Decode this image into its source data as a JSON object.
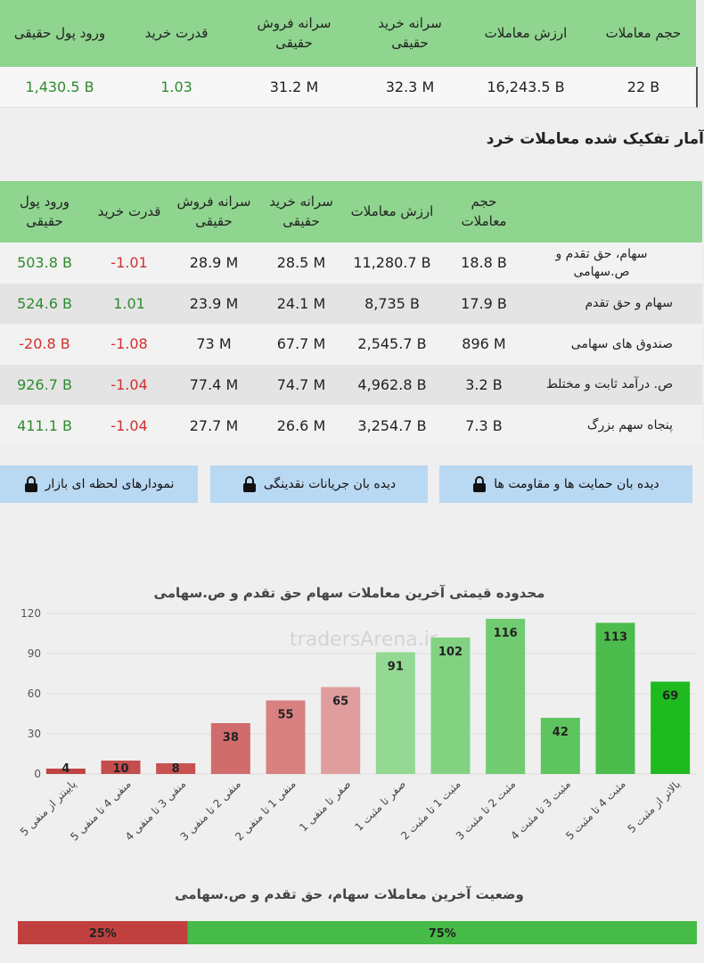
{
  "summary_table": {
    "headers": [
      "حجم معاملات",
      "ارزش معاملات",
      "سرانه خرید حقیقی",
      "سرانه فروش حقیقی",
      "قدرت خرید",
      "ورود پول حقیقی"
    ],
    "values": [
      "22 B",
      "16,243.5 B",
      "32.3 M",
      "31.2 M",
      "1.03",
      "1,430.5 B"
    ]
  },
  "section_title": "آمار تفکیک شده معاملات خرد",
  "breakdown_table": {
    "headers": [
      "حجم معاملات",
      "ارزش معاملات",
      "سرانه خرید حقیقی",
      "سرانه فروش حقیقی",
      "قدرت خرید",
      "ورود پول حقیقی"
    ],
    "rows": [
      {
        "label": "سهام، حق تقدم و ص.سهامی",
        "values": [
          "18.8 B",
          "11,280.7 B",
          "28.5 M",
          "28.9 M",
          "-1.01",
          "503.8 B"
        ]
      },
      {
        "label": "سهام و حق تقدم",
        "values": [
          "17.9 B",
          "8,735 B",
          "24.1 M",
          "23.9 M",
          "1.01",
          "524.6 B"
        ]
      },
      {
        "label": "صندوق های سهامی",
        "values": [
          "896 M",
          "2,545.7 B",
          "67.7 M",
          "73 M",
          "-1.08",
          "-20.8 B"
        ]
      },
      {
        "label": "ص. درآمد ثابت و مختلط",
        "values": [
          "3.2 B",
          "4,962.8 B",
          "74.7 M",
          "77.4 M",
          "-1.04",
          "926.7 B"
        ]
      },
      {
        "label": "پنجاه سهم بزرگ",
        "values": [
          "7.3 B",
          "3,254.7 B",
          "26.6 M",
          "27.7 M",
          "-1.04",
          "411.1 B"
        ]
      }
    ]
  },
  "buttons": [
    "دیده بان حمایت ها و مقاومت ها",
    "دیده بان جریانات نقدینگی",
    "نمودارهای لحظه ای بازار"
  ],
  "watermark": "tradersArena.ir",
  "chart_data": [
    {
      "type": "bar",
      "title": "محدوده قیمتی آخرین معاملات سهام حق تقدم و ص.سهامی",
      "categories": [
        "پایینتر از منفی 5",
        "منفی 4 تا منفی 5",
        "منفی 3 تا منفی 4",
        "منفی 2 تا منفی 3",
        "منفی 1 تا منفی 2",
        "صفر تا منفی 1",
        "صفر تا مثبت 1",
        "مثبت 1 تا مثبت 2",
        "مثبت 2 تا مثبت 3",
        "مثبت 3 تا مثبت 4",
        "مثبت 4 تا مثبت 5",
        "بالاتر از مثبت 5"
      ],
      "values": [
        4,
        10,
        8,
        38,
        55,
        65,
        91,
        102,
        116,
        42,
        113,
        69
      ],
      "colors": [
        "#bf4545",
        "#c44d4d",
        "#c85252",
        "#d06c6c",
        "#d98181",
        "#e09d9d",
        "#93d993",
        "#82d282",
        "#71cb71",
        "#5ec45e",
        "#4cbd4c",
        "#1fba1f"
      ],
      "ylim": [
        0,
        120
      ],
      "yticks": [
        0,
        30,
        60,
        90,
        120
      ],
      "grid": true
    },
    {
      "type": "stacked-bar",
      "title": "وضعیت آخرین معاملات سهام، حق تقدم و ص.سهامی",
      "values": [
        25,
        75
      ],
      "value_labels": [
        "25%",
        "75%"
      ],
      "colors": [
        "#c0403f",
        "#47bb47"
      ],
      "xlim": [
        0,
        100
      ]
    }
  ]
}
